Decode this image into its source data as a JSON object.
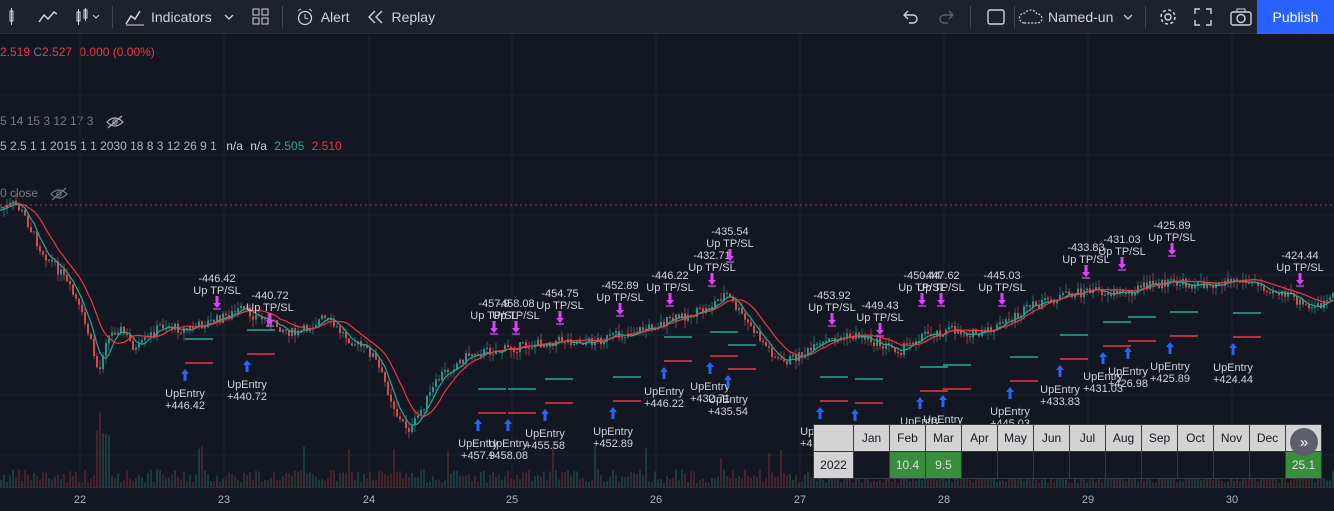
{
  "toolbar": {
    "indicators_label": "Indicators",
    "alert_label": "Alert",
    "replay_label": "Replay",
    "layout_name": "Named-un",
    "publish_label": "Publish"
  },
  "legend": {
    "ohlc_low": "2.519",
    "ohlc_close_prefix": "C",
    "ohlc_close": "2.527",
    "change": "0.000 (0.00%)",
    "indicator1_params": "5 14 15 3 12 17 3",
    "indicator2_params": "5 2.5 1 1 2015 1 1 2030 18 8 3 12 26 9 1",
    "indicator2_na1": "n/a",
    "indicator2_na2": "n/a",
    "indicator2_val_green": "2.505",
    "indicator2_val_red": "2.510",
    "indicator3_label": "0 close"
  },
  "chart_data": {
    "type": "candlestick",
    "x_ticks": [
      "22",
      "23",
      "24",
      "25",
      "26",
      "27",
      "28",
      "29",
      "30"
    ],
    "signal_labels": [
      {
        "label": "UpEntry",
        "value": "+446.42"
      },
      {
        "label": "Up TP/SL",
        "value": "-446.42"
      },
      {
        "label": "UpEntry",
        "value": "+440.72"
      },
      {
        "label": "Up TP/SL",
        "value": "-440.72"
      },
      {
        "label": "UpEntry",
        "value": "+457.9"
      },
      {
        "label": "UpEntry",
        "value": "+458.08"
      },
      {
        "label": "Up TP/SL",
        "value": "-457.9"
      },
      {
        "label": "Up TP/SL",
        "value": "-458.08"
      },
      {
        "label": "Up TP/SL",
        "value": "-454.75"
      },
      {
        "label": "UpEntry",
        "value": "+455.58"
      },
      {
        "label": "UpEntry",
        "value": "+452.89"
      },
      {
        "label": "Up TP/SL",
        "value": "-452.89"
      },
      {
        "label": "UpEntry",
        "value": "+446.22"
      },
      {
        "label": "Up TP/SL",
        "value": "-446.22"
      },
      {
        "label": "UpEntry",
        "value": "+432.71"
      },
      {
        "label": "Up TP/SL",
        "value": "-432.71"
      },
      {
        "label": "UpEntry",
        "value": "+435.54"
      },
      {
        "label": "Up TP/SL",
        "value": "-435.54"
      },
      {
        "label": "UpEntry",
        "value": "+453.92"
      },
      {
        "label": "Up TP/SL",
        "value": "-453.92"
      },
      {
        "label": "UpEntry",
        "value": "+449.43"
      },
      {
        "label": "Up TP/SL",
        "value": "-449.43"
      },
      {
        "label": "UpEntry",
        "value": "+450.45"
      },
      {
        "label": "Up TP/SL",
        "value": "-450.44"
      },
      {
        "label": "UpEntry",
        "value": "+447.62"
      },
      {
        "label": "Up TP/SL",
        "value": "-447.62"
      },
      {
        "label": "UpEntry",
        "value": "+445.03"
      },
      {
        "label": "Up TP/SL",
        "value": "-445.03"
      },
      {
        "label": "UpEntry",
        "value": "+433.83"
      },
      {
        "label": "Up TP/SL",
        "value": "-433.83"
      },
      {
        "label": "UpEntry",
        "value": "+431.03"
      },
      {
        "label": "Up TP/SL",
        "value": "-431.03"
      },
      {
        "label": "UpEntry",
        "value": "+426.98"
      },
      {
        "label": "UpEntry",
        "value": "+425.89"
      },
      {
        "label": "Up TP/SL",
        "value": "-425.89"
      },
      {
        "label": "UpEntry",
        "value": "+424.44"
      },
      {
        "label": "Up TP/SL",
        "value": "-424.44"
      }
    ]
  },
  "monthly_table": {
    "months": [
      "Jan",
      "Feb",
      "Mar",
      "Apr",
      "May",
      "Jun",
      "Jul",
      "Aug",
      "Sep",
      "Oct",
      "Nov",
      "Dec"
    ],
    "year": "2022",
    "values": [
      "",
      "10.4",
      "9.5",
      "",
      "",
      "",
      "",
      "",
      "",
      "",
      "",
      ""
    ],
    "year_total": "25.1"
  },
  "colors": {
    "background": "#131722",
    "up_candle": "#26a69a",
    "down_candle": "#ef5350",
    "ma_fast": "#22ab94",
    "ma_slow": "#f23645",
    "arrow_up": "#2962ff",
    "arrow_down": "#e040fb",
    "publish": "#2962ff"
  },
  "icons": {
    "candles": "candles-icon",
    "line": "line-chart-icon",
    "indicators": "indicators-icon",
    "alert": "alert-clock-icon",
    "replay": "replay-icon",
    "undo": "undo-icon",
    "redo": "redo-icon",
    "settings": "gear-icon",
    "fullscreen": "fullscreen-icon",
    "camera": "camera-icon",
    "eye_off": "eye-off-icon",
    "scroll": "scroll-right-icon"
  }
}
